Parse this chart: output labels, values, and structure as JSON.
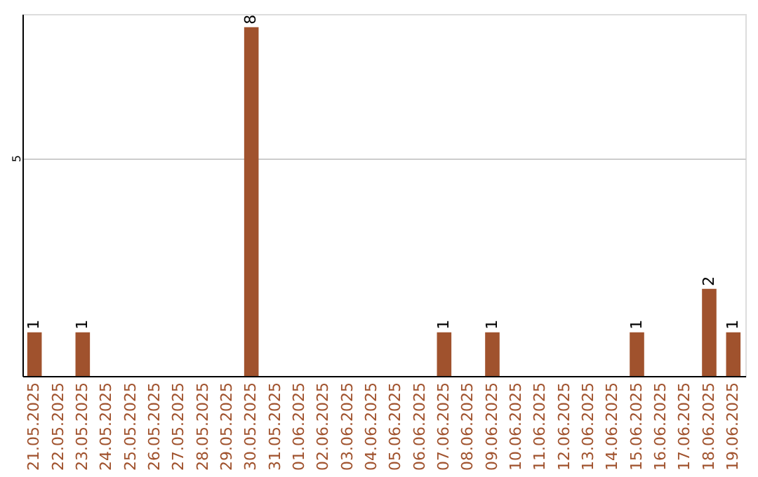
{
  "chart_data": {
    "type": "bar",
    "categories": [
      "21.05.2025",
      "22.05.2025",
      "23.05.2025",
      "24.05.2025",
      "25.05.2025",
      "26.05.2025",
      "27.05.2025",
      "28.05.2025",
      "29.05.2025",
      "30.05.2025",
      "31.05.2025",
      "01.06.2025",
      "02.06.2025",
      "03.06.2025",
      "04.06.2025",
      "05.06.2025",
      "06.06.2025",
      "07.06.2025",
      "08.06.2025",
      "09.06.2025",
      "10.06.2025",
      "11.06.2025",
      "12.06.2025",
      "13.06.2025",
      "14.06.2025",
      "15.06.2025",
      "16.06.2025",
      "17.06.2025",
      "18.06.2025",
      "19.06.2025"
    ],
    "values": [
      1,
      0,
      1,
      0,
      0,
      0,
      0,
      0,
      0,
      8,
      0,
      0,
      0,
      0,
      0,
      0,
      0,
      1,
      0,
      1,
      0,
      0,
      0,
      0,
      0,
      1,
      0,
      0,
      2,
      1
    ],
    "color": "#a0522d",
    "value_labels": [
      "1",
      null,
      "1",
      null,
      null,
      null,
      null,
      null,
      null,
      "8",
      null,
      null,
      null,
      null,
      null,
      null,
      null,
      "1",
      null,
      "1",
      null,
      null,
      null,
      null,
      null,
      "1",
      null,
      null,
      "2",
      "1"
    ],
    "ylim": [
      0,
      8.3
    ],
    "yticks": [
      5
    ],
    "grid": "y"
  }
}
